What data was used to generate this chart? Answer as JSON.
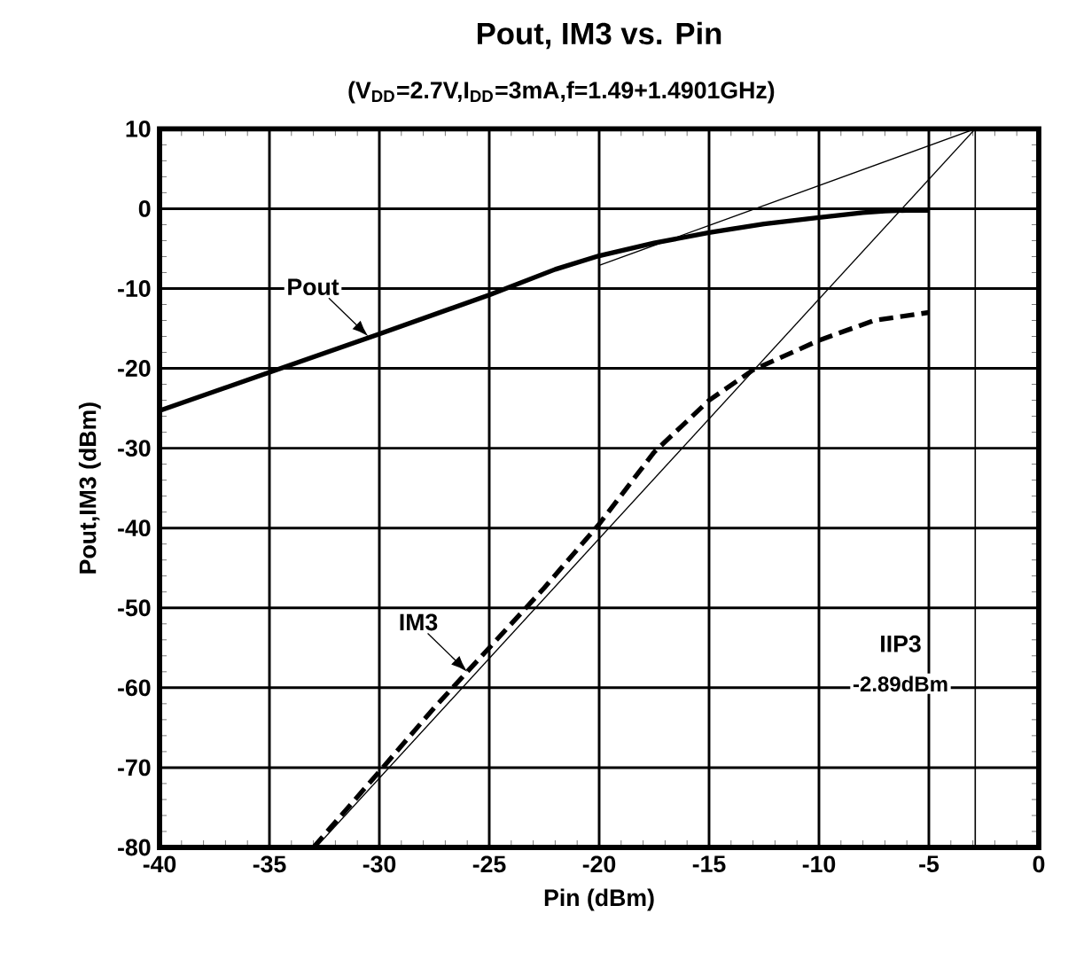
{
  "chart_data": {
    "type": "line",
    "title": "Pout, IM3 vs. Pin",
    "subtitle": "(V$_{DD}$=2.7V,I$_{DD}$=3mA,f=1.49+1.4901GHz)",
    "xlabel": "Pin (dBm)",
    "ylabel": "Pout,IM3 (dBm)",
    "xlim": [
      -40,
      0
    ],
    "ylim": [
      -80,
      10
    ],
    "xticks": [
      -40,
      -35,
      -30,
      -25,
      -20,
      -15,
      -10,
      -5,
      0
    ],
    "yticks": [
      -80,
      -70,
      -60,
      -50,
      -40,
      -30,
      -20,
      -10,
      0,
      10
    ],
    "grid": true,
    "marker": "none",
    "series": [
      {
        "color": "#000000",
        "line_style": "solid",
        "x": [
          -40,
          -35,
          -30,
          -25,
          -22,
          -20,
          -17.5,
          -15,
          -12.5,
          -10,
          -8,
          -7,
          -6,
          -5
        ],
        "values": [
          -25.3,
          -20.5,
          -15.7,
          -10.8,
          -7.6,
          -5.9,
          -4.3,
          -3.0,
          -1.9,
          -1.1,
          -0.5,
          -0.3,
          -0.2,
          -0.2
        ]
      },
      {
        "color": "#000000",
        "line_style": "dashed",
        "x": [
          -33,
          -30,
          -27.5,
          -25,
          -22.5,
          -20,
          -17.5,
          -15,
          -13,
          -10,
          -7.5,
          -5
        ],
        "values": [
          -80,
          -70.5,
          -62.5,
          -55,
          -47.5,
          -39.5,
          -30.5,
          -24,
          -20.2,
          -16.5,
          -14,
          -13
        ]
      },
      {
        "color": "#000000",
        "line_style": "solid",
        "x": [
          -20,
          -2.89
        ],
        "values": [
          -7.1,
          10
        ]
      },
      {
        "color": "#000000",
        "line_style": "solid",
        "x": [
          -32.89,
          -2.89
        ],
        "values": [
          -80,
          10
        ]
      }
    ],
    "ref_lines": [
      {
        "axis": "x",
        "value": -2.89,
        "label": "IIP3",
        "color": "#000000"
      }
    ],
    "annotations": [
      {
        "text": "Pout",
        "x": -30.5,
        "y": -16
      },
      {
        "text": "IM3",
        "x": -26,
        "y": -58
      },
      "-2.89dBm"
    ]
  }
}
